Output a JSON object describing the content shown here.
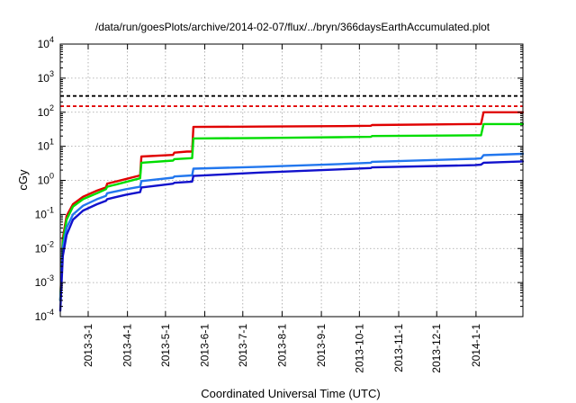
{
  "chart_data": {
    "type": "line",
    "title": "/data/run/goesPlots/archive/2014-02-07/flux/../bryn/366daysEarthAccumulated.plot",
    "xlabel": "Coordinated Universal Time (UTC)",
    "ylabel": "cGy",
    "xlim": [
      "2013-02-07",
      "2014-02-07"
    ],
    "ylim": [
      0.0001,
      10000
    ],
    "yscale": "log",
    "grid": true,
    "x_ticks": [
      "2013-3-1",
      "2013-4-1",
      "2013-5-1",
      "2013-6-1",
      "2013-7-1",
      "2013-8-1",
      "2013-9-1",
      "2013-10-1",
      "2013-11-1",
      "2013-12-1",
      "2014-1-1"
    ],
    "y_ticks": [
      {
        "value": 0.0001,
        "base": "10",
        "exp": "-4"
      },
      {
        "value": 0.001,
        "base": "10",
        "exp": "-3"
      },
      {
        "value": 0.01,
        "base": "10",
        "exp": "-2"
      },
      {
        "value": 0.1,
        "base": "10",
        "exp": "-1"
      },
      {
        "value": 1,
        "base": "10",
        "exp": "0"
      },
      {
        "value": 10,
        "base": "10",
        "exp": "1"
      },
      {
        "value": 100,
        "base": "10",
        "exp": "2"
      },
      {
        "value": 1000,
        "base": "10",
        "exp": "3"
      },
      {
        "value": 10000,
        "base": "10",
        "exp": "4"
      }
    ],
    "reference_lines": [
      {
        "value": 300,
        "color": "#000000",
        "style": "dashed"
      },
      {
        "value": 150,
        "color": "#e00000",
        "style": "dashed"
      }
    ],
    "series": [
      {
        "color": "#e00000",
        "points": [
          [
            "2013-02-07",
            0.0003
          ],
          [
            "2013-02-09",
            0.02
          ],
          [
            "2013-02-12",
            0.09
          ],
          [
            "2013-02-17",
            0.2
          ],
          [
            "2013-02-25",
            0.33
          ],
          [
            "2013-03-08",
            0.5
          ],
          [
            "2013-03-15",
            0.62
          ],
          [
            "2013-03-16",
            0.8
          ],
          [
            "2013-03-31",
            1.1
          ],
          [
            "2013-04-11",
            1.4
          ],
          [
            "2013-04-12",
            5.0
          ],
          [
            "2013-05-07",
            5.6
          ],
          [
            "2013-05-08",
            6.5
          ],
          [
            "2013-05-18",
            7.0
          ],
          [
            "2013-05-22",
            7.0
          ],
          [
            "2013-05-23",
            37
          ],
          [
            "2013-07-15",
            38
          ],
          [
            "2013-09-15",
            39
          ],
          [
            "2013-10-10",
            40
          ],
          [
            "2013-10-11",
            42
          ],
          [
            "2013-12-31",
            45
          ],
          [
            "2014-01-05",
            45
          ],
          [
            "2014-01-07",
            100
          ],
          [
            "2014-02-07",
            100
          ]
        ]
      },
      {
        "color": "#00dd00",
        "points": [
          [
            "2013-02-07",
            0.0003
          ],
          [
            "2013-02-09",
            0.015
          ],
          [
            "2013-02-12",
            0.07
          ],
          [
            "2013-02-17",
            0.17
          ],
          [
            "2013-02-25",
            0.28
          ],
          [
            "2013-03-08",
            0.42
          ],
          [
            "2013-03-15",
            0.55
          ],
          [
            "2013-03-16",
            0.65
          ],
          [
            "2013-03-31",
            0.9
          ],
          [
            "2013-04-11",
            1.15
          ],
          [
            "2013-04-12",
            3.3
          ],
          [
            "2013-05-07",
            3.8
          ],
          [
            "2013-05-08",
            4.2
          ],
          [
            "2013-05-22",
            4.5
          ],
          [
            "2013-05-23",
            17
          ],
          [
            "2013-07-15",
            17.5
          ],
          [
            "2013-09-15",
            18.5
          ],
          [
            "2013-10-10",
            19
          ],
          [
            "2013-10-11",
            20
          ],
          [
            "2013-12-31",
            21
          ],
          [
            "2014-01-05",
            21
          ],
          [
            "2014-01-07",
            45
          ],
          [
            "2014-02-07",
            45
          ]
        ]
      },
      {
        "color": "#2277ee",
        "points": [
          [
            "2013-02-07",
            0.0003
          ],
          [
            "2013-02-09",
            0.01
          ],
          [
            "2013-02-12",
            0.04
          ],
          [
            "2013-02-17",
            0.1
          ],
          [
            "2013-02-25",
            0.18
          ],
          [
            "2013-03-08",
            0.28
          ],
          [
            "2013-03-15",
            0.35
          ],
          [
            "2013-03-16",
            0.42
          ],
          [
            "2013-03-31",
            0.55
          ],
          [
            "2013-04-11",
            0.65
          ],
          [
            "2013-04-12",
            0.95
          ],
          [
            "2013-05-07",
            1.2
          ],
          [
            "2013-05-08",
            1.3
          ],
          [
            "2013-05-22",
            1.4
          ],
          [
            "2013-05-23",
            2.2
          ],
          [
            "2013-07-15",
            2.5
          ],
          [
            "2013-09-15",
            3.0
          ],
          [
            "2013-10-10",
            3.3
          ],
          [
            "2013-10-11",
            3.5
          ],
          [
            "2013-12-31",
            4.3
          ],
          [
            "2014-01-05",
            4.4
          ],
          [
            "2014-01-07",
            5.5
          ],
          [
            "2014-02-07",
            6.0
          ]
        ]
      },
      {
        "color": "#1111cc",
        "points": [
          [
            "2013-02-07",
            0.00015
          ],
          [
            "2013-02-09",
            0.006
          ],
          [
            "2013-02-12",
            0.025
          ],
          [
            "2013-02-17",
            0.07
          ],
          [
            "2013-02-25",
            0.13
          ],
          [
            "2013-03-08",
            0.2
          ],
          [
            "2013-03-15",
            0.25
          ],
          [
            "2013-03-16",
            0.28
          ],
          [
            "2013-03-31",
            0.38
          ],
          [
            "2013-04-11",
            0.45
          ],
          [
            "2013-04-12",
            0.62
          ],
          [
            "2013-05-07",
            0.8
          ],
          [
            "2013-05-08",
            0.85
          ],
          [
            "2013-05-22",
            0.92
          ],
          [
            "2013-05-23",
            1.35
          ],
          [
            "2013-07-15",
            1.7
          ],
          [
            "2013-09-15",
            2.1
          ],
          [
            "2013-10-10",
            2.3
          ],
          [
            "2013-10-11",
            2.4
          ],
          [
            "2013-12-31",
            2.8
          ],
          [
            "2014-01-05",
            2.9
          ],
          [
            "2014-01-07",
            3.3
          ],
          [
            "2014-02-07",
            3.6
          ]
        ]
      }
    ]
  }
}
